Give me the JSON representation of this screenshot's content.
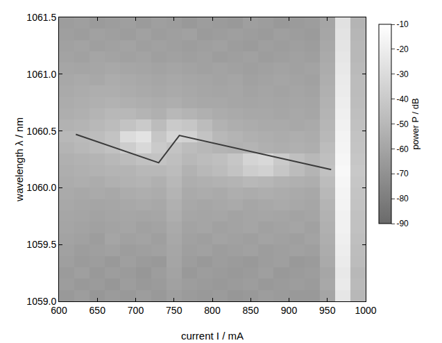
{
  "chart_data": {
    "type": "heatmap",
    "x_label": "current I / mA",
    "y_label": "wavelength λ / nm",
    "xlim": [
      600,
      1000
    ],
    "xticks": [
      600,
      650,
      700,
      750,
      800,
      850,
      900,
      950,
      1000
    ],
    "ylim": [
      1059.0,
      1061.5
    ],
    "yticks": [
      {
        "value": 1059.0,
        "label": "1059.0"
      },
      1059.5,
      {
        "value": 1060.0,
        "label": "1060.0"
      },
      1060.5,
      {
        "value": 1061.0,
        "label": "1061.0"
      },
      1061.5
    ],
    "colorbar": {
      "title": "power P / dB",
      "range": [
        -90,
        -10
      ],
      "ticks": [
        -10,
        -20,
        -30,
        -40,
        -50,
        -60,
        -70,
        -80,
        -90
      ]
    },
    "heatmap": {
      "x": [
        610,
        630,
        650,
        670,
        690,
        710,
        730,
        750,
        770,
        790,
        810,
        830,
        850,
        870,
        890,
        910,
        930,
        950,
        970,
        990
      ],
      "y": [
        1059.05,
        1059.15,
        1059.25,
        1059.35,
        1059.45,
        1059.55,
        1059.65,
        1059.75,
        1059.85,
        1059.95,
        1060.05,
        1060.15,
        1060.25,
        1060.35,
        1060.45,
        1060.55,
        1060.65,
        1060.75,
        1060.85,
        1060.95,
        1061.05,
        1061.15,
        1061.25,
        1061.35,
        1061.45
      ],
      "z": [
        [
          -66,
          -64,
          -67,
          -65,
          -66,
          -64,
          -66,
          -63,
          -65,
          -66,
          -65,
          -67,
          -66,
          -64,
          -65,
          -66,
          -66,
          -60,
          -24,
          -50
        ],
        [
          -64,
          -66,
          -65,
          -67,
          -64,
          -66,
          -65,
          -62,
          -64,
          -65,
          -66,
          -65,
          -64,
          -66,
          -65,
          -64,
          -65,
          -58,
          -22,
          -49
        ],
        [
          -65,
          -63,
          -66,
          -64,
          -65,
          -67,
          -64,
          -61,
          -66,
          -64,
          -65,
          -66,
          -65,
          -63,
          -66,
          -65,
          -64,
          -59,
          -23,
          -50
        ],
        [
          -63,
          -65,
          -64,
          -66,
          -63,
          -65,
          -66,
          -60,
          -64,
          -66,
          -64,
          -65,
          -66,
          -64,
          -63,
          -66,
          -65,
          -57,
          -21,
          -48
        ],
        [
          -62,
          -64,
          -63,
          -62,
          -64,
          -63,
          -62,
          -59,
          -63,
          -62,
          -64,
          -63,
          -62,
          -64,
          -63,
          -62,
          -63,
          -56,
          -20,
          -47
        ],
        [
          -61,
          -62,
          -64,
          -60,
          -62,
          -61,
          -63,
          -58,
          -62,
          -63,
          -61,
          -62,
          -63,
          -61,
          -62,
          -63,
          -61,
          -55,
          -19,
          -46
        ],
        [
          -60,
          -61,
          -62,
          -61,
          -60,
          -62,
          -61,
          -57,
          -61,
          -60,
          -62,
          -61,
          -60,
          -62,
          -61,
          -60,
          -62,
          -54,
          -18,
          -45
        ],
        [
          -59,
          -60,
          -61,
          -60,
          -59,
          -60,
          -59,
          -55,
          -59,
          -60,
          -59,
          -61,
          -60,
          -59,
          -60,
          -61,
          -60,
          -53,
          -18,
          -45
        ],
        [
          -58,
          -59,
          -60,
          -59,
          -58,
          -57,
          -58,
          -54,
          -58,
          -59,
          -58,
          -57,
          -59,
          -58,
          -57,
          -58,
          -59,
          -52,
          -17,
          -44
        ],
        [
          -57,
          -58,
          -57,
          -58,
          -56,
          -55,
          -56,
          -52,
          -57,
          -56,
          -57,
          -55,
          -56,
          -55,
          -56,
          -57,
          -58,
          -50,
          -16,
          -43
        ],
        [
          -56,
          -55,
          -56,
          -54,
          -53,
          -52,
          -54,
          -50,
          -55,
          -54,
          -53,
          -52,
          -50,
          -51,
          -53,
          -54,
          -55,
          -48,
          -15,
          -42
        ],
        [
          -55,
          -54,
          -53,
          -52,
          -52,
          -50,
          -50,
          -48,
          -53,
          -50,
          -48,
          -44,
          -38,
          -36,
          -42,
          -48,
          -52,
          -45,
          -14,
          -41
        ],
        [
          -54,
          -53,
          -52,
          -50,
          -48,
          -45,
          -44,
          -46,
          -50,
          -48,
          -46,
          -42,
          -34,
          -32,
          -40,
          -46,
          -50,
          -46,
          -15,
          -42
        ],
        [
          -52,
          -50,
          -48,
          -45,
          -38,
          -32,
          -40,
          -44,
          -48,
          -50,
          -52,
          -53,
          -52,
          -54,
          -55,
          -54,
          -55,
          -48,
          -16,
          -43
        ],
        [
          -50,
          -49,
          -47,
          -44,
          -30,
          -26,
          -42,
          -34,
          -36,
          -44,
          -50,
          -52,
          -54,
          -55,
          -56,
          -55,
          -56,
          -50,
          -17,
          -44
        ],
        [
          -53,
          -52,
          -50,
          -48,
          -44,
          -40,
          -48,
          -40,
          -42,
          -48,
          -53,
          -55,
          -56,
          -57,
          -57,
          -58,
          -57,
          -51,
          -18,
          -45
        ],
        [
          -55,
          -54,
          -52,
          -50,
          -50,
          -52,
          -54,
          -50,
          -52,
          -54,
          -56,
          -57,
          -58,
          -58,
          -59,
          -58,
          -59,
          -52,
          -19,
          -46
        ],
        [
          -56,
          -55,
          -54,
          -53,
          -54,
          -55,
          -56,
          -55,
          -57,
          -58,
          -58,
          -59,
          -60,
          -59,
          -60,
          -59,
          -60,
          -53,
          -20,
          -47
        ],
        [
          -57,
          -56,
          -55,
          -55,
          -56,
          -57,
          -58,
          -57,
          -58,
          -59,
          -60,
          -59,
          -61,
          -60,
          -61,
          -60,
          -61,
          -54,
          -21,
          -48
        ],
        [
          -58,
          -57,
          -58,
          -56,
          -57,
          -58,
          -59,
          -58,
          -59,
          -60,
          -61,
          -60,
          -62,
          -61,
          -60,
          -61,
          -62,
          -55,
          -22,
          -48
        ],
        [
          -59,
          -60,
          -59,
          -58,
          -59,
          -60,
          -61,
          -60,
          -61,
          -62,
          -61,
          -62,
          -63,
          -62,
          -61,
          -62,
          -61,
          -56,
          -23,
          -49
        ],
        [
          -61,
          -62,
          -60,
          -61,
          -62,
          -61,
          -63,
          -62,
          -63,
          -62,
          -64,
          -63,
          -62,
          -64,
          -63,
          -62,
          -63,
          -57,
          -24,
          -50
        ],
        [
          -62,
          -61,
          -63,
          -62,
          -61,
          -63,
          -62,
          -63,
          -64,
          -63,
          -62,
          -64,
          -65,
          -63,
          -64,
          -63,
          -64,
          -58,
          -25,
          -50
        ],
        [
          -63,
          -64,
          -62,
          -63,
          -64,
          -62,
          -64,
          -63,
          -62,
          -65,
          -64,
          -63,
          -64,
          -65,
          -63,
          -64,
          -65,
          -59,
          -26,
          -51
        ],
        [
          -64,
          -63,
          -65,
          -64,
          -63,
          -65,
          -63,
          -64,
          -66,
          -64,
          -65,
          -66,
          -63,
          -64,
          -66,
          -65,
          -64,
          -60,
          -27,
          -52
        ]
      ]
    },
    "line": {
      "type": "line",
      "color": "#3a3a3a",
      "x": [
        622,
        730,
        757,
        955
      ],
      "values": [
        1060.47,
        1060.22,
        1060.46,
        1060.16
      ]
    }
  }
}
